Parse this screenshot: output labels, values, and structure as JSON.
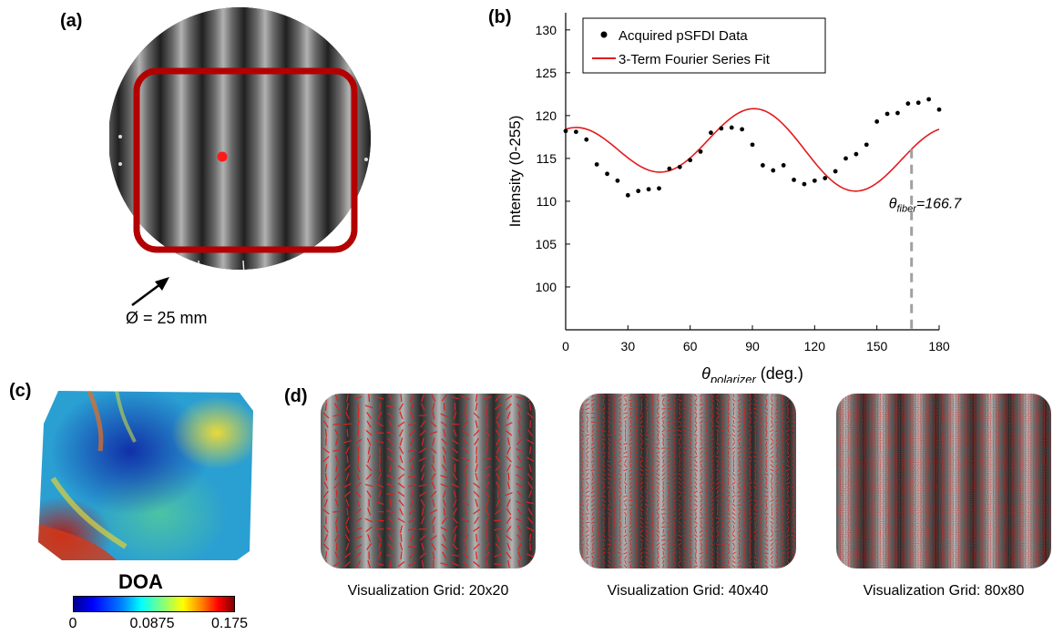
{
  "panels": {
    "a": {
      "label": "(a)",
      "diameter_label": "Ø = 25 mm"
    },
    "b": {
      "label": "(b)"
    },
    "c": {
      "label": "(c)",
      "colorbar": {
        "title": "DOA",
        "ticks": [
          "0",
          "0.0875",
          "0.175"
        ]
      }
    },
    "d": {
      "label": "(d)",
      "grids": [
        {
          "caption": "Visualization Grid: 20x20",
          "n": 20
        },
        {
          "caption": "Visualization Grid: 40x40",
          "n": 40
        },
        {
          "caption": "Visualization Grid: 80x80",
          "n": 80
        }
      ]
    }
  },
  "chart_data": {
    "type": "scatter",
    "xlabel_main": "θ",
    "xlabel_sub": "polarizer",
    "xlabel_unit": " (deg.)",
    "ylabel": "Intensity  (0-255)",
    "xlim": [
      0,
      180
    ],
    "ylim": [
      95,
      132
    ],
    "xticks": [
      0,
      30,
      60,
      90,
      120,
      150,
      180
    ],
    "yticks": [
      100,
      105,
      110,
      115,
      120,
      125,
      130
    ],
    "legend_position": "top-left",
    "series": [
      {
        "name": "Acquired pSFDI Data",
        "kind": "points",
        "color": "#000000",
        "x": [
          0,
          5,
          10,
          15,
          20,
          25,
          30,
          35,
          40,
          45,
          50,
          55,
          60,
          65,
          70,
          75,
          80,
          85,
          90,
          95,
          100,
          105,
          110,
          115,
          120,
          125,
          130,
          135,
          140,
          145,
          150,
          155,
          160,
          165,
          170,
          175,
          180
        ],
        "y": [
          118.2,
          118.1,
          117.2,
          114.3,
          113.2,
          112.4,
          110.7,
          111.2,
          111.4,
          111.5,
          113.8,
          114.0,
          114.8,
          115.8,
          118.0,
          118.5,
          118.6,
          118.4,
          116.6,
          114.2,
          113.6,
          114.2,
          112.5,
          112.0,
          112.4,
          112.7,
          113.5,
          115.0,
          115.5,
          116.6,
          119.3,
          120.2,
          120.3,
          121.4,
          121.5,
          121.9,
          120.7
        ]
      },
      {
        "name": "3-Term Fourier Series Fit",
        "kind": "line",
        "color": "#e31a1c",
        "fit": {
          "a0": 116.0,
          "a2": -1.2,
          "b2": 1.0,
          "a4": 3.6,
          "b4": 0.7
        }
      }
    ],
    "annotation": {
      "x": 166.7,
      "label_main": "θ",
      "label_sub": "fiber",
      "label_value": "=166.7°",
      "line_color": "#a0a0a0"
    }
  }
}
